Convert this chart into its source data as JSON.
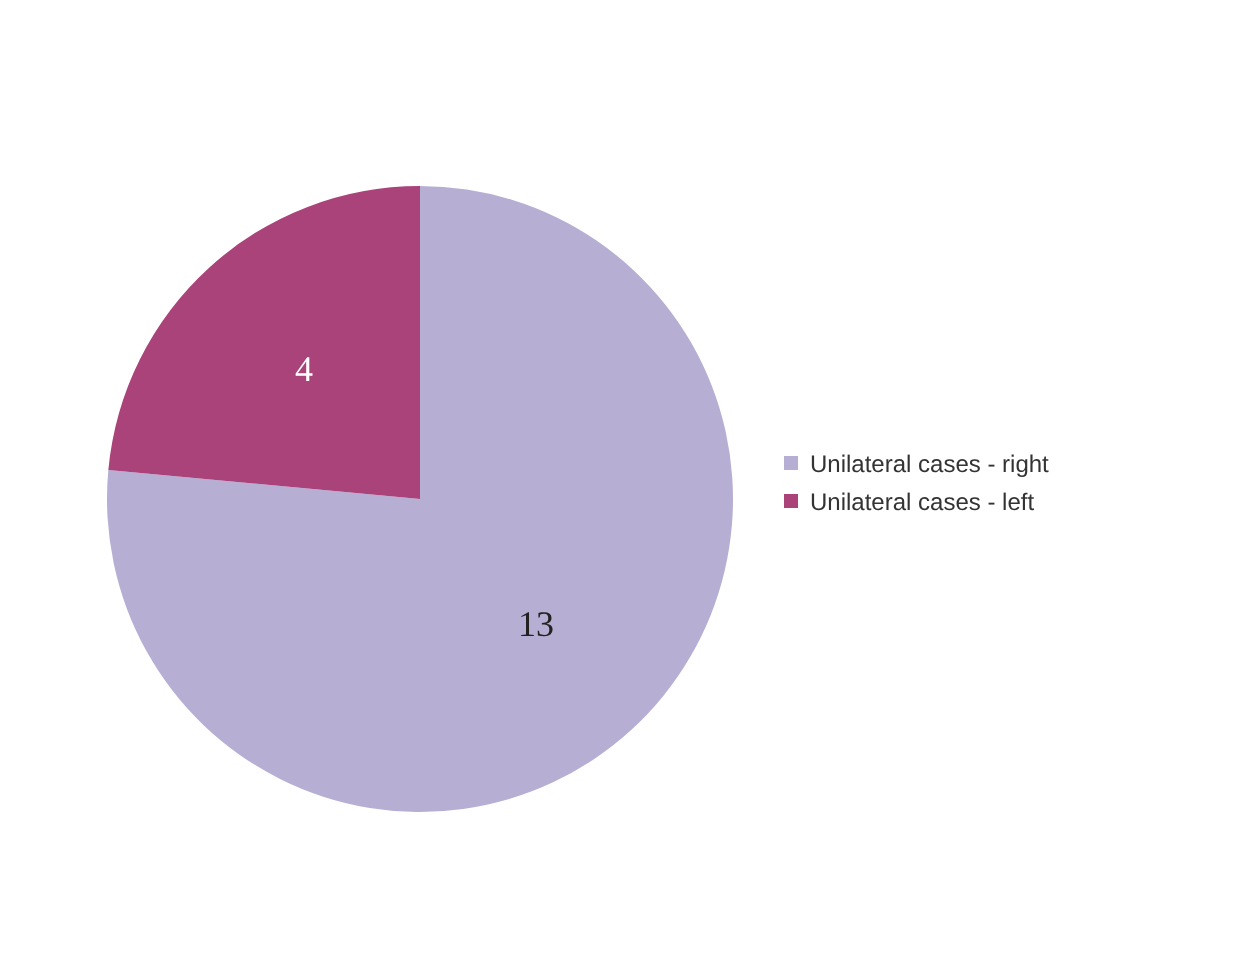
{
  "chart_data": {
    "type": "pie",
    "categories": [
      "Unilateral cases - right",
      "Unilateral cases - left"
    ],
    "values": [
      13,
      4
    ],
    "colors": [
      "#b7aed4",
      "#a9437a"
    ],
    "data_labels": true,
    "legend": "right"
  }
}
